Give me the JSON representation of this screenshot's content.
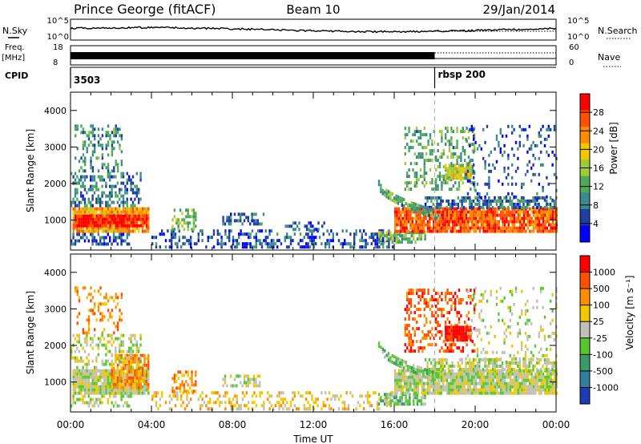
{
  "header": {
    "station": "Prince George (fitACF)",
    "beam": "Beam 10",
    "date": "29/Jan/2014"
  },
  "top_panels": {
    "noise": {
      "left_label": "N.Sky",
      "right_label": "N.Search",
      "left_ticks": [
        "10^5",
        "10^0"
      ],
      "right_ticks": [
        "10^5",
        "10^0"
      ]
    },
    "freq": {
      "left_label_1": "Freq.",
      "left_label_2": "[MHz]",
      "right_label": "Nave",
      "left_ticks": [
        "18",
        "8"
      ],
      "right_ticks": [
        "60",
        "0"
      ]
    },
    "cpid": {
      "label": "CPID",
      "segments": [
        {
          "text": "3503",
          "start_hour": 0
        },
        {
          "text": "rbsp 200",
          "start_hour": 18
        }
      ]
    }
  },
  "x_axis": {
    "label": "Time UT",
    "range_hours": [
      0,
      24
    ],
    "ticks": [
      {
        "hour": 0,
        "label": "00:00"
      },
      {
        "hour": 4,
        "label": "04:00"
      },
      {
        "hour": 8,
        "label": "08:00"
      },
      {
        "hour": 12,
        "label": "12:00"
      },
      {
        "hour": 16,
        "label": "16:00"
      },
      {
        "hour": 20,
        "label": "20:00"
      },
      {
        "hour": 24,
        "label": "00:00"
      }
    ]
  },
  "chart_data": [
    {
      "type": "heatmap",
      "name": "power",
      "ylabel": "Slant Range [km]",
      "ylim": [
        180,
        4500
      ],
      "yticks": [
        1000,
        2000,
        3000,
        4000
      ],
      "colorbar": {
        "label": "Power [dB]",
        "range": [
          0,
          32
        ],
        "ticks": [
          4,
          8,
          12,
          16,
          20,
          24,
          28
        ],
        "colors": [
          "#0000ff",
          "#1e3fa0",
          "#3c8a8c",
          "#4faa55",
          "#9ccc3c",
          "#f0c800",
          "#ff8c00",
          "#ff5000",
          "#ff0000"
        ]
      },
      "regions": [
        {
          "t0": 0.1,
          "t1": 3.9,
          "r0": 650,
          "r1": 1350,
          "level": 22,
          "density": 0.95
        },
        {
          "t0": 0.2,
          "t1": 3.8,
          "r0": 800,
          "r1": 1150,
          "level": 30,
          "density": 0.9
        },
        {
          "t0": 0.0,
          "t1": 3.5,
          "r0": 1350,
          "r1": 2300,
          "level": 8,
          "density": 0.45
        },
        {
          "t0": 0.2,
          "t1": 2.5,
          "r0": 2300,
          "r1": 3600,
          "level": 10,
          "density": 0.3
        },
        {
          "t0": 0.0,
          "t1": 3.0,
          "r0": 300,
          "r1": 650,
          "level": 6,
          "density": 0.45
        },
        {
          "t0": 4.0,
          "t1": 16.2,
          "r0": 220,
          "r1": 700,
          "level": 6,
          "density": 0.35
        },
        {
          "t0": 5.0,
          "t1": 6.2,
          "r0": 700,
          "r1": 1300,
          "level": 14,
          "density": 0.5
        },
        {
          "t0": 7.5,
          "t1": 9.5,
          "r0": 850,
          "r1": 1150,
          "level": 8,
          "density": 0.5
        },
        {
          "t0": 10.5,
          "t1": 12.5,
          "r0": 700,
          "r1": 950,
          "level": 6,
          "density": 0.4
        },
        {
          "t0": 15.2,
          "t1": 17.5,
          "r0": 350,
          "r1": 700,
          "level": 14,
          "density": 0.6
        },
        {
          "t0": 16.0,
          "t1": 24.0,
          "r0": 650,
          "r1": 1300,
          "level": 26,
          "density": 0.9
        },
        {
          "t0": 17.5,
          "t1": 24.0,
          "r0": 1300,
          "r1": 1600,
          "level": 8,
          "density": 0.6
        },
        {
          "t0": 16.5,
          "t1": 20.0,
          "r0": 1800,
          "r1": 3500,
          "level": 12,
          "density": 0.35
        },
        {
          "t0": 18.5,
          "t1": 19.8,
          "r0": 2100,
          "r1": 2500,
          "level": 18,
          "density": 0.85
        },
        {
          "t0": 19.5,
          "t1": 24.0,
          "r0": 1500,
          "r1": 3600,
          "level": 6,
          "density": 0.15
        }
      ],
      "arcs": [
        {
          "t0": 15.2,
          "t1": 18.2,
          "r_start": 1950,
          "r_end": 1100,
          "level": 12,
          "width": 220
        }
      ]
    },
    {
      "type": "heatmap",
      "name": "velocity",
      "ylabel": "Slant Range [km]",
      "ylim": [
        180,
        4500
      ],
      "yticks": [
        1000,
        2000,
        3000,
        4000
      ],
      "colorbar": {
        "label": "Velocity [m s⁻¹]",
        "ticks": [
          "1000",
          "500",
          "100",
          "25",
          "-25",
          "-100",
          "-500",
          "-1000"
        ],
        "colors": [
          "#1e3cb4",
          "#2f7fa0",
          "#3a9a6a",
          "#58c830",
          "#c0c0b8",
          "#f0c800",
          "#ff8c00",
          "#ff5000",
          "#ff0000"
        ]
      },
      "regions": [
        {
          "t0": 0.1,
          "t1": 3.9,
          "r0": 650,
          "r1": 1350,
          "level": 4,
          "density": 0.95
        },
        {
          "t0": 2.0,
          "t1": 3.9,
          "r0": 800,
          "r1": 1700,
          "level": 6,
          "density": 0.7
        },
        {
          "t0": 0.0,
          "t1": 3.5,
          "r0": 1350,
          "r1": 2300,
          "level": 4,
          "density": 0.4
        },
        {
          "t0": 0.2,
          "t1": 2.5,
          "r0": 2300,
          "r1": 3600,
          "level": 6,
          "density": 0.25
        },
        {
          "t0": 0.0,
          "t1": 3.0,
          "r0": 300,
          "r1": 650,
          "level": 4,
          "density": 0.4
        },
        {
          "t0": 4.0,
          "t1": 16.2,
          "r0": 220,
          "r1": 700,
          "level": 5,
          "density": 0.3
        },
        {
          "t0": 5.0,
          "t1": 6.2,
          "r0": 700,
          "r1": 1300,
          "level": 6,
          "density": 0.45
        },
        {
          "t0": 7.5,
          "t1": 9.5,
          "r0": 850,
          "r1": 1150,
          "level": 4,
          "density": 0.5
        },
        {
          "t0": 15.2,
          "t1": 17.5,
          "r0": 350,
          "r1": 700,
          "level": 3,
          "density": 0.6
        },
        {
          "t0": 16.0,
          "t1": 24.0,
          "r0": 650,
          "r1": 1300,
          "level": 4,
          "density": 0.92
        },
        {
          "t0": 17.5,
          "t1": 24.0,
          "r0": 1300,
          "r1": 1600,
          "level": 4,
          "density": 0.6
        },
        {
          "t0": 16.5,
          "t1": 20.0,
          "r0": 1800,
          "r1": 3500,
          "level": 7,
          "density": 0.35
        },
        {
          "t0": 18.5,
          "t1": 19.8,
          "r0": 2100,
          "r1": 2500,
          "level": 8,
          "density": 0.85
        },
        {
          "t0": 19.5,
          "t1": 24.0,
          "r0": 1500,
          "r1": 3600,
          "level": 4,
          "density": 0.15
        }
      ],
      "arcs": [
        {
          "t0": 15.2,
          "t1": 18.2,
          "r_start": 1950,
          "r_end": 1100,
          "level": 3,
          "width": 220
        }
      ]
    }
  ]
}
